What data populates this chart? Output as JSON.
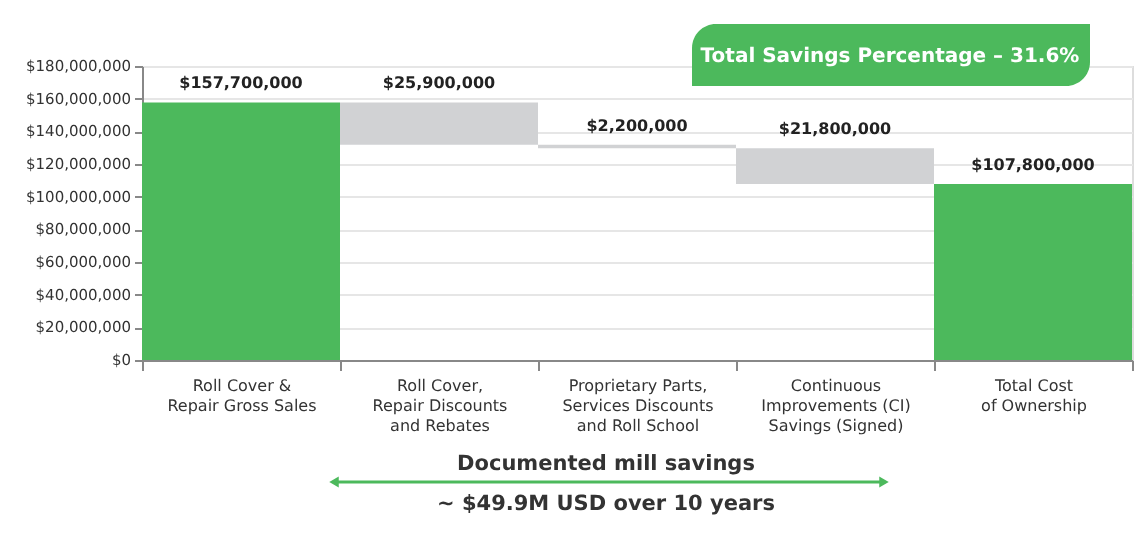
{
  "chart_data": {
    "type": "bar",
    "categories": [
      "Roll Cover &\nRepair Gross Sales",
      "Roll Cover,\nRepair Discounts\nand Rebates",
      "Proprietary Parts,\nServices Discounts\nand Roll School",
      "Continuous\nImprovements (CI)\nSavings (Signed)",
      "Total Cost\nof Ownership"
    ],
    "values": [
      157700000,
      25900000,
      2200000,
      21800000,
      107800000
    ],
    "base": [
      0,
      131800000,
      129600000,
      107800000,
      0
    ],
    "colors": [
      "#4cb95c",
      "#d1d2d4",
      "#d1d2d4",
      "#d1d2d4",
      "#4cb95c"
    ],
    "value_labels": [
      "$157,700,000",
      "$25,900,000",
      "$2,200,000",
      "$21,800,000",
      "$107,800,000"
    ],
    "ylim": [
      0,
      180000000
    ],
    "yticks": [
      {
        "value": 0,
        "label": "$0"
      },
      {
        "value": 20000000,
        "label": "$20,000,000"
      },
      {
        "value": 40000000,
        "label": "$40,000,000"
      },
      {
        "value": 60000000,
        "label": "$60,000,000"
      },
      {
        "value": 80000000,
        "label": "$80,000,000"
      },
      {
        "value": 100000000,
        "label": "$100,000,000"
      },
      {
        "value": 120000000,
        "label": "$120,000,000"
      },
      {
        "value": 140000000,
        "label": "$140,000,000"
      },
      {
        "value": 160000000,
        "label": "$160,000,000"
      },
      {
        "value": 180000000,
        "label": "$180,000,000"
      }
    ],
    "grid": "y",
    "annotations": [
      "Total Savings Percentage – 31.6%",
      "Documented mill savings",
      "~ $49.9M USD over 10 years"
    ]
  }
}
